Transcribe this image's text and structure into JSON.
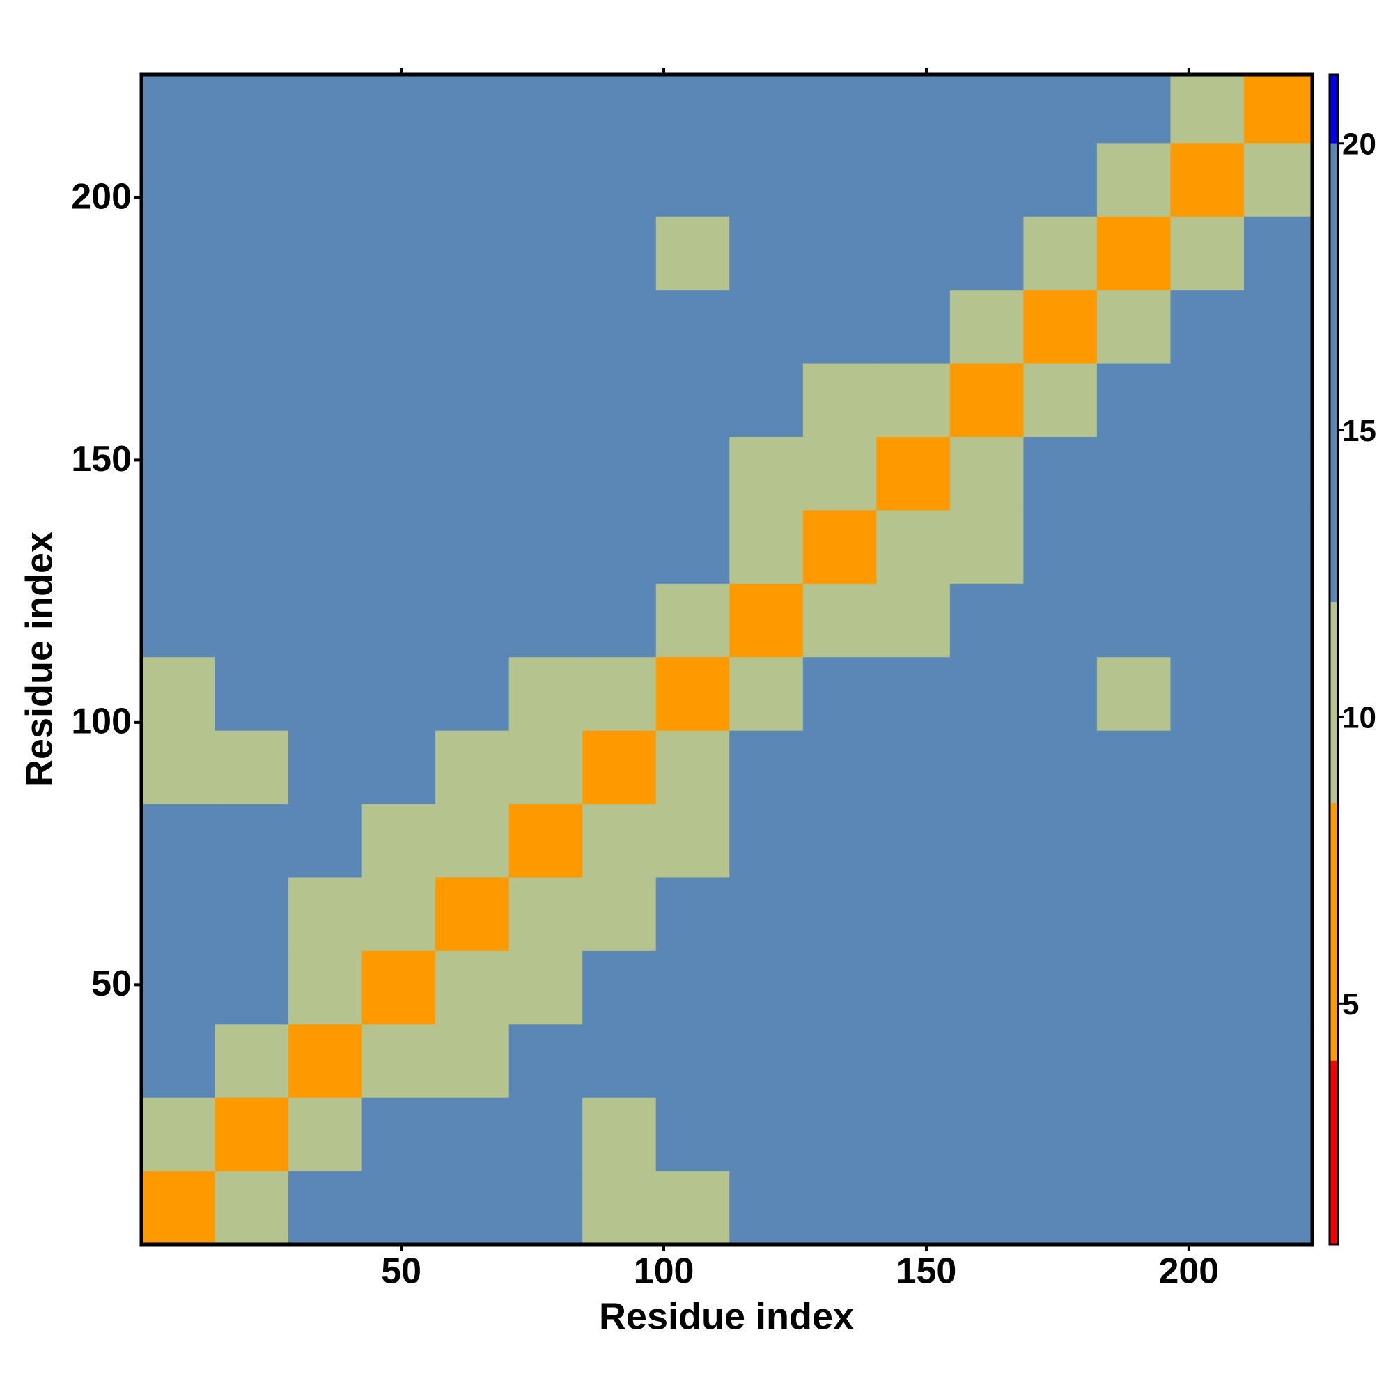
{
  "chart_data": {
    "type": "heatmap",
    "x_label": "Residue index",
    "y_label": "Residue index",
    "x_bins": [
      0.5,
      14.5,
      28.5,
      42.5,
      56.5,
      70.5,
      84.5,
      98.5,
      112.5,
      126.5,
      140.5,
      154.5,
      168.5,
      182.5,
      196.5,
      210.5,
      223.5
    ],
    "y_bins": [
      0.5,
      14.5,
      28.5,
      42.5,
      56.5,
      70.5,
      84.5,
      98.5,
      112.5,
      126.5,
      140.5,
      154.5,
      168.5,
      182.5,
      196.5,
      210.5,
      223.5
    ],
    "values": [
      [
        6,
        10,
        13,
        16,
        17,
        17,
        12,
        12,
        14,
        17,
        18,
        18,
        16,
        14,
        14,
        17
      ],
      [
        10,
        6,
        11,
        15,
        16,
        16,
        12,
        16,
        18,
        17,
        18,
        17,
        17,
        15,
        13,
        16
      ],
      [
        13,
        11,
        6,
        10,
        12,
        14,
        13,
        17,
        17,
        18,
        18,
        18,
        17,
        17,
        16,
        18
      ],
      [
        16,
        15,
        10,
        6,
        9,
        12,
        15,
        16,
        18,
        17,
        18,
        17,
        17,
        17,
        17,
        19
      ],
      [
        17,
        16,
        12,
        9,
        6,
        10,
        12,
        13,
        16,
        17,
        17,
        17,
        17,
        17,
        17,
        19
      ],
      [
        17,
        16,
        14,
        12,
        10,
        6,
        10,
        12,
        18,
        19,
        18,
        19,
        17,
        16,
        16,
        19
      ],
      [
        12,
        12,
        13,
        15,
        12,
        10,
        6,
        10,
        14,
        16,
        17,
        17,
        15,
        13,
        15,
        18
      ],
      [
        12,
        16,
        17,
        16,
        13,
        12,
        10,
        6,
        10,
        15,
        18,
        18,
        15,
        12,
        13,
        18
      ],
      [
        14,
        18,
        17,
        18,
        16,
        18,
        14,
        10,
        6,
        9,
        12,
        14,
        14,
        15,
        16,
        19
      ],
      [
        17,
        17,
        18,
        17,
        17,
        19,
        16,
        15,
        9,
        6,
        10,
        12,
        13,
        16,
        17,
        19
      ],
      [
        18,
        18,
        18,
        18,
        17,
        18,
        17,
        18,
        12,
        10,
        6,
        10,
        14,
        17,
        17,
        19
      ],
      [
        18,
        17,
        18,
        17,
        17,
        19,
        17,
        18,
        14,
        12,
        10,
        6,
        10,
        13,
        16,
        18
      ],
      [
        16,
        17,
        17,
        17,
        17,
        17,
        15,
        15,
        14,
        13,
        14,
        10,
        6,
        10,
        13,
        17
      ],
      [
        14,
        15,
        17,
        17,
        17,
        16,
        13,
        12,
        15,
        16,
        17,
        13,
        10,
        6,
        9,
        15
      ],
      [
        14,
        13,
        16,
        17,
        17,
        16,
        15,
        13,
        16,
        17,
        17,
        16,
        13,
        9,
        6,
        11
      ],
      [
        17,
        16,
        18,
        19,
        19,
        19,
        18,
        18,
        19,
        19,
        19,
        18,
        17,
        15,
        11,
        6
      ]
    ],
    "xlim": [
      0.5,
      223.5
    ],
    "ylim": [
      0.5,
      223.5
    ],
    "xticks": [
      50,
      100,
      150,
      200
    ],
    "yticks": [
      50,
      100,
      150,
      200
    ],
    "clim": [
      0.8,
      21.2
    ],
    "cticks": [
      5,
      10,
      15,
      20
    ],
    "color_steps": [
      {
        "upto": 4,
        "color": "#ff0000"
      },
      {
        "upto": 8.5,
        "color": "#ff9900"
      },
      {
        "upto": 12,
        "color": "#b5c38e"
      },
      {
        "upto": 20,
        "color": "#5b87b6"
      },
      {
        "upto": 21.2,
        "color": "#0000ee"
      }
    ]
  }
}
